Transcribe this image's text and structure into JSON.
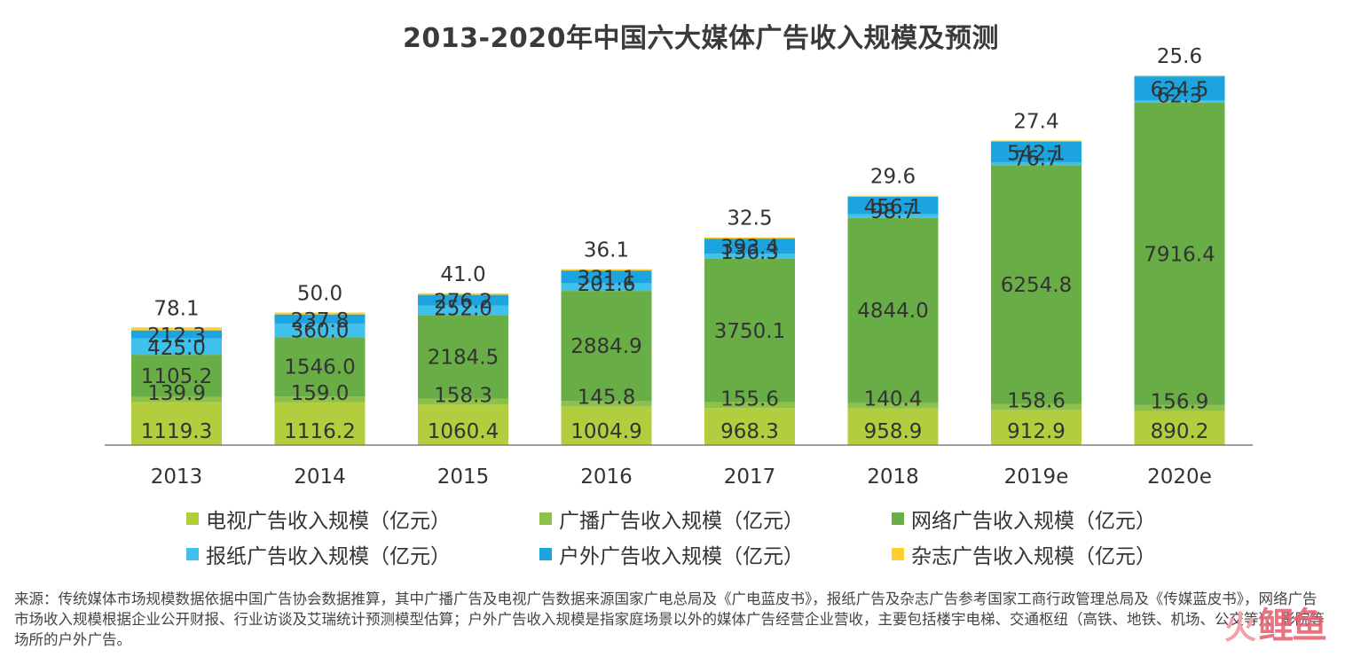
{
  "colors": {
    "tv": "#b2ce3e",
    "radio": "#8dc149",
    "online": "#69ad47",
    "newspaper": "#3fc1ec",
    "outdoor": "#1ba4df",
    "magazine": "#ffcf2e",
    "axis": "#7f7f7f"
  },
  "chart_data": {
    "type": "bar",
    "stacked": true,
    "title": "2013-2020年中国六大媒体广告收入规模及预测",
    "categories": [
      "2013",
      "2014",
      "2015",
      "2016",
      "2017",
      "2018",
      "2019e",
      "2020e"
    ],
    "series": [
      {
        "key": "tv",
        "name": "电视广告收入规模（亿元）",
        "values": [
          1119.3,
          1116.2,
          1060.4,
          1004.9,
          968.3,
          958.9,
          912.9,
          890.2
        ]
      },
      {
        "key": "radio",
        "name": "广播广告收入规模（亿元）",
        "values": [
          139.9,
          159.0,
          158.3,
          145.8,
          155.6,
          140.4,
          158.6,
          156.9
        ]
      },
      {
        "key": "online",
        "name": "网络广告收入规模（亿元）",
        "values": [
          1105.2,
          1546.0,
          2184.5,
          2884.9,
          3750.1,
          4844.0,
          6254.8,
          7916.4
        ]
      },
      {
        "key": "newspaper",
        "name": "报纸广告收入规模（亿元）",
        "values": [
          425.0,
          360.0,
          252.0,
          201.6,
          136.3,
          98.7,
          76.7,
          62.3
        ]
      },
      {
        "key": "outdoor",
        "name": "户外广告收入规模（亿元）",
        "values": [
          212.3,
          237.8,
          276.2,
          331.1,
          393.4,
          456.1,
          542.1,
          624.5
        ]
      },
      {
        "key": "magazine",
        "name": "杂志广告收入规模（亿元）",
        "values": [
          78.1,
          50.0,
          41.0,
          36.1,
          32.5,
          29.6,
          27.4,
          25.6
        ]
      }
    ],
    "legend_position": "bottom",
    "grid": false
  },
  "legend": {
    "items": [
      "电视广告收入规模（亿元）",
      "广播广告收入规模（亿元）",
      "网络广告收入规模（亿元）",
      "报纸广告收入规模（亿元）",
      "户外广告收入规模（亿元）",
      "杂志广告收入规模（亿元）"
    ]
  },
  "source_note": "来源：传统媒体市场规模数据依据中国广告协会数据推算，其中广播广告及电视广告数据来源国家广电总局及《广电蓝皮书》，报纸广告及杂志广告参考国家工商行政管理总局及《传媒蓝皮书》，网络广告市场收入规模根据企业公开财报、行业访谈及艾瑞统计预测模型估算；户外广告收入规模是指家庭场景以外的媒体广告经营企业营收，主要包括楼宇电梯、交通枢纽（高铁、地铁、机场、公交等）、影院等场所的户外广告。",
  "watermark": {
    "mark": "火",
    "text": "鲤鱼"
  }
}
